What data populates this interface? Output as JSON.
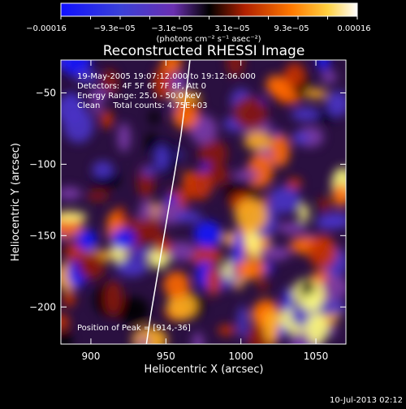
{
  "colorbar": {
    "tick_labels": [
      "−0.00016",
      "−9.3e−05",
      "−3.1e−05",
      "3.1e−05",
      "9.3e−05",
      "0.00016"
    ],
    "units": "(photons cm⁻² s⁻¹ asec⁻²)"
  },
  "image_info": {
    "line1": "19-May-2005 19:07:12.000 to 19:12:06.000",
    "line2": "Detectors: 4F 5F 6F 7F 8F, Att 0",
    "line3": "Energy Range: 25.0 - 50.0 keV",
    "line4": "Clean     Total counts: 4.75E+03",
    "peak": "Position of Peak = [914,-36]"
  },
  "footer_date": "10-Jul-2013 02:12",
  "chart_data": {
    "type": "heatmap",
    "title": "Reconstructed RHESSI Image",
    "xlabel": "Heliocentric X (arcsec)",
    "ylabel": "Heliocentric Y (arcsec)",
    "xlim": [
      880,
      1070
    ],
    "ylim": [
      -226,
      -27
    ],
    "x_ticks": [
      900,
      950,
      1000,
      1050
    ],
    "y_ticks": [
      -50,
      -100,
      -150,
      -200
    ],
    "x_tick_labels": [
      "900",
      "950",
      "1000",
      "1050"
    ],
    "y_tick_labels": [
      "−50",
      "−100",
      "−150",
      "−200"
    ],
    "value_range": [
      -0.00016,
      0.00016
    ],
    "colors": {
      "low": "#1a1aff",
      "mid_low": "#7a3aa8",
      "zero": "#000000",
      "mid_high": "#c83200",
      "high": "#ffff80",
      "max": "#ffffff"
    },
    "limb_curve": [
      [
        937,
        -226
      ],
      [
        940,
        -205
      ],
      [
        944,
        -180
      ],
      [
        948,
        -155
      ],
      [
        952,
        -130
      ],
      [
        956,
        -105
      ],
      [
        960,
        -80
      ],
      [
        963,
        -55
      ],
      [
        966,
        -27
      ]
    ]
  }
}
